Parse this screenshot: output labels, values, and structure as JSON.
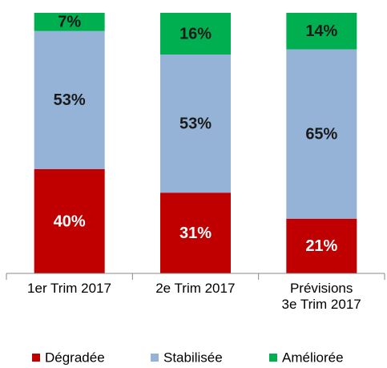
{
  "chart_data": {
    "type": "stacked_bar",
    "categories": [
      "1er Trim  2017",
      "2e Trim 2017",
      "Prévisions\n3e Trim  2017"
    ],
    "series": [
      {
        "name": "Dégradée",
        "color": "#c00000",
        "values": [
          40,
          31,
          21
        ],
        "value_labels": [
          "40%",
          "31%",
          "21%"
        ]
      },
      {
        "name": "Stabilisée",
        "color": "#95b3d7",
        "values": [
          53,
          53,
          65
        ],
        "value_labels": [
          "53%",
          "53%",
          "65%"
        ]
      },
      {
        "name": "Améliorée",
        "color": "#00b050",
        "values": [
          7,
          16,
          14
        ],
        "value_labels": [
          "7%",
          "16%",
          "14%"
        ]
      }
    ]
  }
}
